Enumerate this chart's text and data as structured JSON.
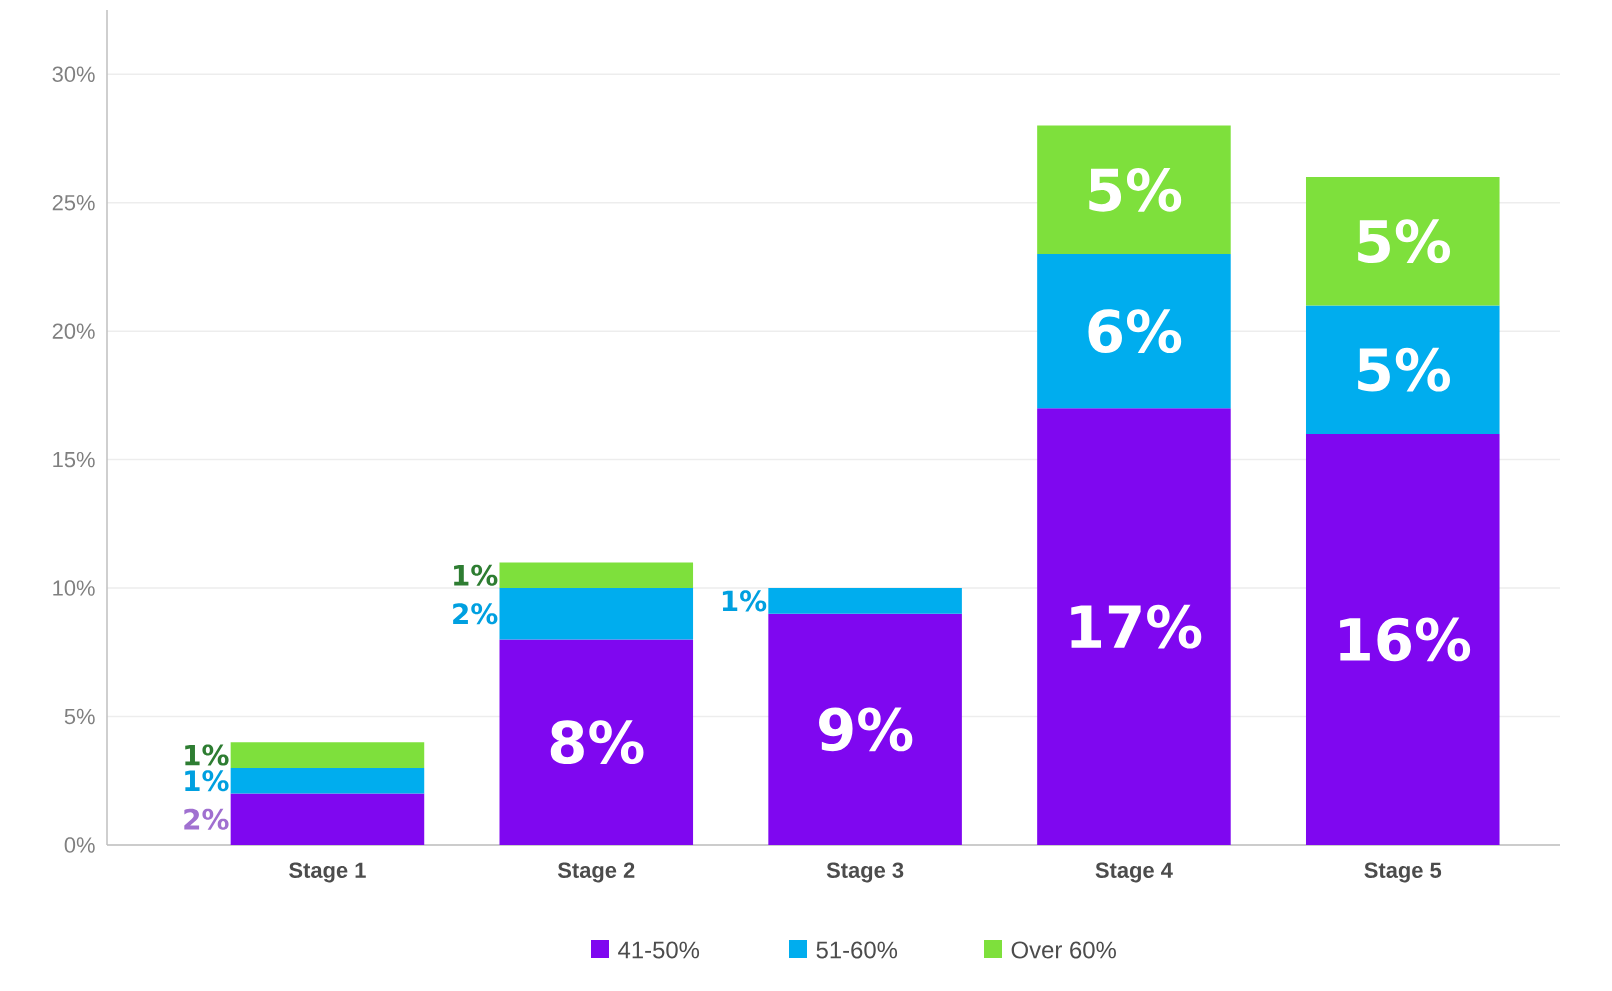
{
  "chart_data": {
    "type": "bar",
    "stacked": true,
    "categories": [
      "Stage 1",
      "Stage 2",
      "Stage 3",
      "Stage 4",
      "Stage 5"
    ],
    "series": [
      {
        "name": "41-50%",
        "color": "#7f07f0",
        "values": [
          2,
          8,
          9,
          17,
          16
        ],
        "value_labels": [
          "2%",
          "8%",
          "9%",
          "17%",
          "16%"
        ]
      },
      {
        "name": "51-60%",
        "color": "#00adee",
        "values": [
          1,
          2,
          1,
          6,
          5
        ],
        "value_labels": [
          "1%",
          "2%",
          "1%",
          "6%",
          "5%"
        ]
      },
      {
        "name": "Over 60%",
        "color": "#7ee03c",
        "values": [
          1,
          1,
          null,
          5,
          5
        ],
        "value_labels": [
          "1%",
          "1%",
          null,
          "5%",
          "5%"
        ]
      }
    ],
    "ylim": [
      0,
      32.5
    ],
    "yticks": [
      {
        "value": 0,
        "label": "0%"
      },
      {
        "value": 5,
        "label": "5%"
      },
      {
        "value": 10,
        "label": "10%"
      },
      {
        "value": 15,
        "label": "15%"
      },
      {
        "value": 20,
        "label": "20%"
      },
      {
        "value": 25,
        "label": "25%"
      },
      {
        "value": 30,
        "label": "30%"
      }
    ],
    "grid": "y",
    "legend": "bottom"
  }
}
